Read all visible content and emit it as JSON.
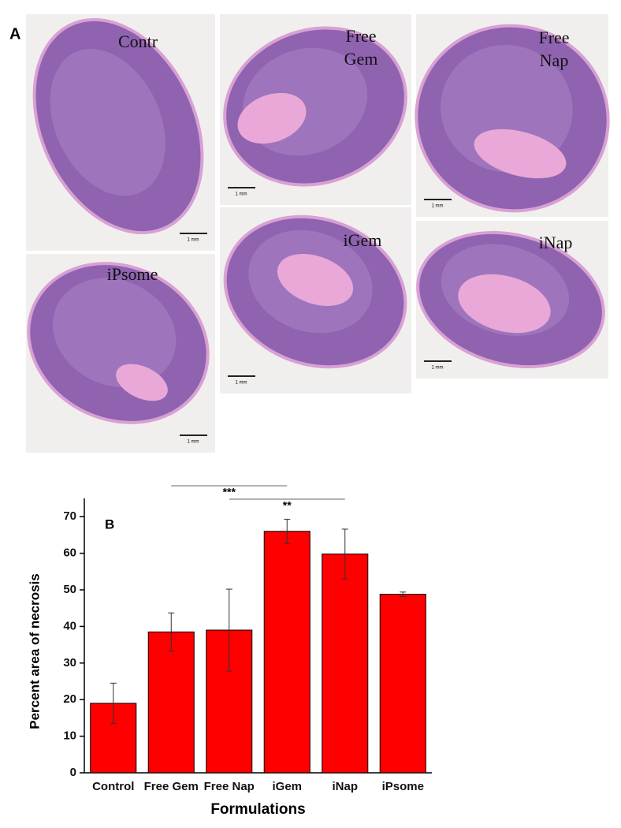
{
  "panel_a": {
    "panel_label": "A",
    "scale_bar": "1 mm",
    "images": [
      {
        "label_lines": [
          "Contr"
        ]
      },
      {
        "label_lines": [
          "Free",
          "Gem"
        ]
      },
      {
        "label_lines": [
          "Free",
          "Nap"
        ]
      },
      {
        "label_lines": [
          "iPsome"
        ]
      },
      {
        "label_lines": [
          "iGem"
        ]
      },
      {
        "label_lines": [
          "iNap"
        ]
      }
    ]
  },
  "chart_data": {
    "type": "bar",
    "panel_label": "B",
    "x_label": "Formulations",
    "y_label": "Percent area of  necrosis",
    "categories": [
      "Control",
      "Free Gem",
      "Free Nap",
      "iGem",
      "iNap",
      "iPsome"
    ],
    "values": [
      19,
      38.5,
      39,
      66,
      59.8,
      48.8
    ],
    "errors": [
      5.5,
      5.2,
      11.2,
      3.3,
      6.8,
      0.6
    ],
    "color": "#ff0000",
    "ylim": [
      0,
      75
    ],
    "yticks": [
      0,
      10,
      20,
      30,
      40,
      50,
      60,
      70
    ],
    "significance": [
      {
        "from": "Free Gem",
        "to": "iGem",
        "label": "***"
      },
      {
        "from": "Free Nap",
        "to": "iNap",
        "label": "**"
      }
    ]
  }
}
